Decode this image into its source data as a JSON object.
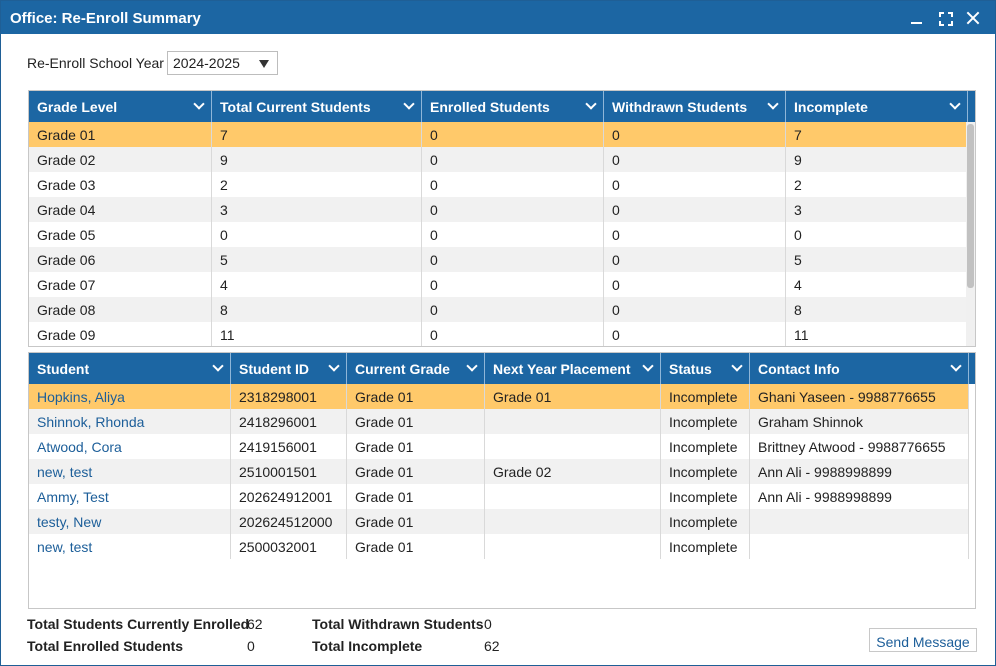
{
  "window": {
    "title": "Office: Re-Enroll Summary"
  },
  "filter": {
    "label": "Re-Enroll School Year",
    "selected": "2024-2025"
  },
  "grade_grid": {
    "columns": [
      "Grade Level",
      "Total Current Students",
      "Enrolled Students",
      "Withdrawn Students",
      "Incomplete"
    ],
    "rows": [
      [
        "Grade 01",
        "7",
        "0",
        "0",
        "7"
      ],
      [
        "Grade 02",
        "9",
        "0",
        "0",
        "9"
      ],
      [
        "Grade 03",
        "2",
        "0",
        "0",
        "2"
      ],
      [
        "Grade 04",
        "3",
        "0",
        "0",
        "3"
      ],
      [
        "Grade 05",
        "0",
        "0",
        "0",
        "0"
      ],
      [
        "Grade 06",
        "5",
        "0",
        "0",
        "5"
      ],
      [
        "Grade 07",
        "4",
        "0",
        "0",
        "4"
      ],
      [
        "Grade 08",
        "8",
        "0",
        "0",
        "8"
      ],
      [
        "Grade 09",
        "11",
        "0",
        "0",
        "11"
      ]
    ]
  },
  "student_grid": {
    "columns": [
      "Student",
      "Student ID",
      "Current Grade",
      "Next Year Placement",
      "Status",
      "Contact Info"
    ],
    "rows": [
      [
        "Hopkins, Aliya",
        "2318298001",
        "Grade 01",
        "Grade 01",
        "Incomplete",
        "Ghani Yaseen - 9988776655"
      ],
      [
        "Shinnok, Rhonda",
        "2418296001",
        "Grade 01",
        "",
        "Incomplete",
        "Graham Shinnok"
      ],
      [
        "Atwood, Cora",
        "2419156001",
        "Grade 01",
        "",
        "Incomplete",
        "Brittney Atwood - 9988776655"
      ],
      [
        "new, test",
        "2510001501",
        "Grade 01",
        "Grade 02",
        "Incomplete",
        "Ann Ali - 9988998899"
      ],
      [
        "Ammy, Test",
        "202624912001",
        "Grade 01",
        "",
        "Incomplete",
        "Ann Ali - 9988998899"
      ],
      [
        "testy, New",
        "202624512000",
        "Grade 01",
        "",
        "Incomplete",
        ""
      ],
      [
        "new, test",
        "2500032001",
        "Grade 01",
        "",
        "Incomplete",
        ""
      ]
    ]
  },
  "totals": {
    "currently_enrolled_label": "Total Students Currently Enrolled",
    "currently_enrolled_value": "62",
    "enrolled_label": "Total Enrolled Students",
    "enrolled_value": "0",
    "withdrawn_label": "Total Withdrawn Students",
    "withdrawn_value": "0",
    "incomplete_label": "Total Incomplete",
    "incomplete_value": "62"
  },
  "actions": {
    "send_message": "Send Message"
  },
  "colors": {
    "header": "#1c66a3",
    "selected_row": "#ffc96a",
    "link": "#1c5e99"
  }
}
